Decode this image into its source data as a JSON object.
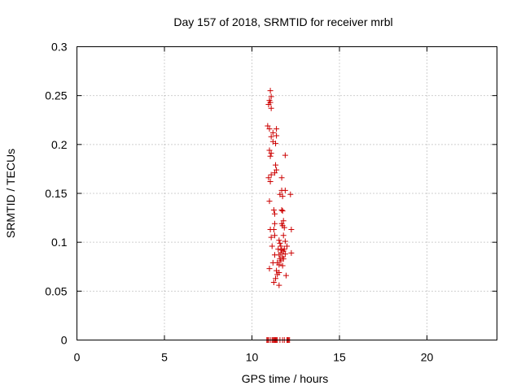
{
  "chart_data": {
    "type": "scatter",
    "title": "Day 157 of 2018, SRMTID for receiver mrbl",
    "xlabel": "GPS time / hours",
    "ylabel": "SRMTID / TECUs",
    "xlim": [
      0,
      24
    ],
    "ylim": [
      0,
      0.3
    ],
    "xticks": [
      "0",
      "5",
      "10",
      "15",
      "20"
    ],
    "yticks": [
      "0",
      "0.05",
      "0.1",
      "0.15",
      "0.2",
      "0.25",
      "0.3"
    ],
    "grid": true,
    "marker": "plus",
    "marker_color": "#cc0000",
    "series": [
      {
        "name": "SRMTID",
        "points": [
          [
            11.05,
            0.255
          ],
          [
            11.1,
            0.249
          ],
          [
            11.0,
            0.245
          ],
          [
            11.05,
            0.243
          ],
          [
            10.95,
            0.241
          ],
          [
            11.1,
            0.237
          ],
          [
            10.9,
            0.219
          ],
          [
            11.0,
            0.216
          ],
          [
            11.4,
            0.216
          ],
          [
            11.2,
            0.212
          ],
          [
            11.4,
            0.209
          ],
          [
            11.1,
            0.208
          ],
          [
            11.2,
            0.203
          ],
          [
            11.35,
            0.201
          ],
          [
            11.0,
            0.194
          ],
          [
            11.1,
            0.191
          ],
          [
            11.05,
            0.188
          ],
          [
            11.9,
            0.189
          ],
          [
            11.35,
            0.179
          ],
          [
            11.4,
            0.174
          ],
          [
            11.3,
            0.171
          ],
          [
            11.1,
            0.169
          ],
          [
            10.95,
            0.166
          ],
          [
            11.7,
            0.166
          ],
          [
            11.05,
            0.162
          ],
          [
            11.7,
            0.153
          ],
          [
            11.9,
            0.153
          ],
          [
            11.6,
            0.149
          ],
          [
            11.75,
            0.147
          ],
          [
            12.2,
            0.149
          ],
          [
            11.0,
            0.142
          ],
          [
            11.25,
            0.133
          ],
          [
            11.3,
            0.129
          ],
          [
            11.7,
            0.133
          ],
          [
            11.75,
            0.132
          ],
          [
            11.8,
            0.122
          ],
          [
            11.7,
            0.119
          ],
          [
            11.75,
            0.117
          ],
          [
            11.3,
            0.119
          ],
          [
            11.85,
            0.115
          ],
          [
            11.05,
            0.113
          ],
          [
            11.25,
            0.113
          ],
          [
            12.25,
            0.113
          ],
          [
            11.3,
            0.107
          ],
          [
            11.1,
            0.105
          ],
          [
            11.8,
            0.107
          ],
          [
            11.55,
            0.102
          ],
          [
            11.6,
            0.099
          ],
          [
            11.9,
            0.101
          ],
          [
            11.15,
            0.096
          ],
          [
            11.65,
            0.096
          ],
          [
            12.0,
            0.096
          ],
          [
            11.5,
            0.093
          ],
          [
            11.7,
            0.092
          ],
          [
            11.85,
            0.093
          ],
          [
            11.8,
            0.091
          ],
          [
            11.65,
            0.089
          ],
          [
            11.9,
            0.088
          ],
          [
            12.25,
            0.089
          ],
          [
            11.3,
            0.087
          ],
          [
            11.55,
            0.087
          ],
          [
            11.75,
            0.085
          ],
          [
            11.6,
            0.083
          ],
          [
            11.8,
            0.083
          ],
          [
            11.65,
            0.081
          ],
          [
            11.2,
            0.079
          ],
          [
            11.45,
            0.079
          ],
          [
            11.55,
            0.077
          ],
          [
            11.75,
            0.076
          ],
          [
            11.0,
            0.073
          ],
          [
            11.4,
            0.071
          ],
          [
            11.55,
            0.069
          ],
          [
            11.45,
            0.067
          ],
          [
            11.95,
            0.066
          ],
          [
            11.35,
            0.063
          ],
          [
            11.25,
            0.059
          ],
          [
            11.55,
            0.056
          ],
          [
            10.85,
            0.0
          ],
          [
            10.9,
            0.0
          ],
          [
            10.95,
            0.0
          ],
          [
            11.05,
            0.0
          ],
          [
            11.15,
            0.0
          ],
          [
            11.2,
            0.0
          ],
          [
            11.25,
            0.0
          ],
          [
            11.3,
            0.0
          ],
          [
            11.35,
            0.0
          ],
          [
            11.4,
            0.0
          ],
          [
            11.45,
            0.0
          ],
          [
            11.6,
            0.0
          ],
          [
            11.75,
            0.0
          ],
          [
            11.85,
            0.0
          ],
          [
            12.0,
            0.0
          ],
          [
            12.05,
            0.0
          ],
          [
            12.1,
            0.0
          ],
          [
            12.15,
            0.0
          ]
        ]
      }
    ]
  }
}
